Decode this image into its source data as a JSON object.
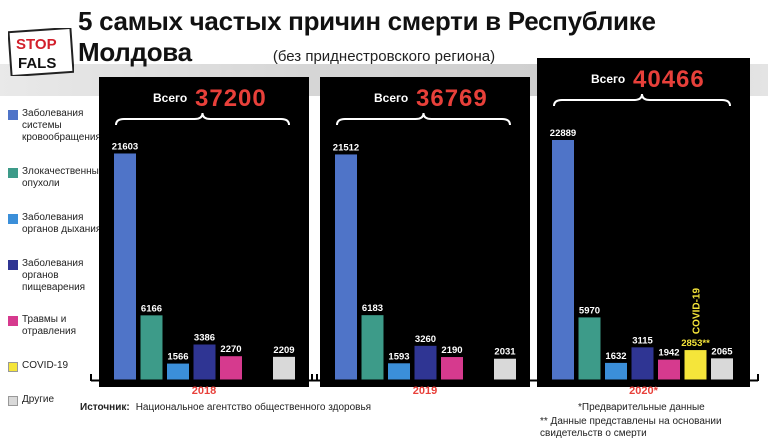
{
  "header": {
    "title": "5 самых частых причин смерти в Республике Молдова",
    "subtitle": "(без приднестровского региона)",
    "logo_top": "STOP",
    "logo_bottom": "FALS"
  },
  "legend": [
    {
      "label": "Заболевания системы кровообращения",
      "color": "#4f74c8"
    },
    {
      "label": "Злокачественные опухоли",
      "color": "#3d9b89"
    },
    {
      "label": "Заболевания органов дыхания",
      "color": "#3b8fd9"
    },
    {
      "label": "Заболевания органов пищеварения",
      "color": "#2f3593"
    },
    {
      "label": "Травмы и отравления",
      "color": "#d63a8e"
    },
    {
      "label": "COVID-19",
      "color": "#f5e53a"
    },
    {
      "label": "Другие",
      "color": "#d9d9d9"
    }
  ],
  "chart_data": {
    "type": "bar",
    "categories": [
      "Заболевания системы кровообращения",
      "Злокачественные опухоли",
      "Заболевания органов дыхания",
      "Заболевания органов пищеварения",
      "Травмы и отравления",
      "COVID-19",
      "Другие"
    ],
    "total_prefix": "Всего",
    "panels": [
      {
        "year": "2018",
        "total": "37200",
        "values": [
          21603,
          6166,
          1566,
          3386,
          2270,
          null,
          2209
        ]
      },
      {
        "year": "2019",
        "total": "36769",
        "values": [
          21512,
          6183,
          1593,
          3260,
          2190,
          null,
          2031
        ]
      },
      {
        "year": "2020*",
        "total": "40466",
        "values": [
          22889,
          5970,
          1632,
          3115,
          1942,
          2853,
          2065
        ]
      }
    ],
    "covid_value_label": "2853**",
    "covid_rotated_label": "COVID-19",
    "ylim": [
      0,
      24000
    ]
  },
  "footer": {
    "source_label": "Источник:",
    "source_text": "Национальное агентство общественного здоровья",
    "note1": "*Предварительные данные",
    "note2": "** Данные представлены на основании свидетельств о смерти"
  }
}
